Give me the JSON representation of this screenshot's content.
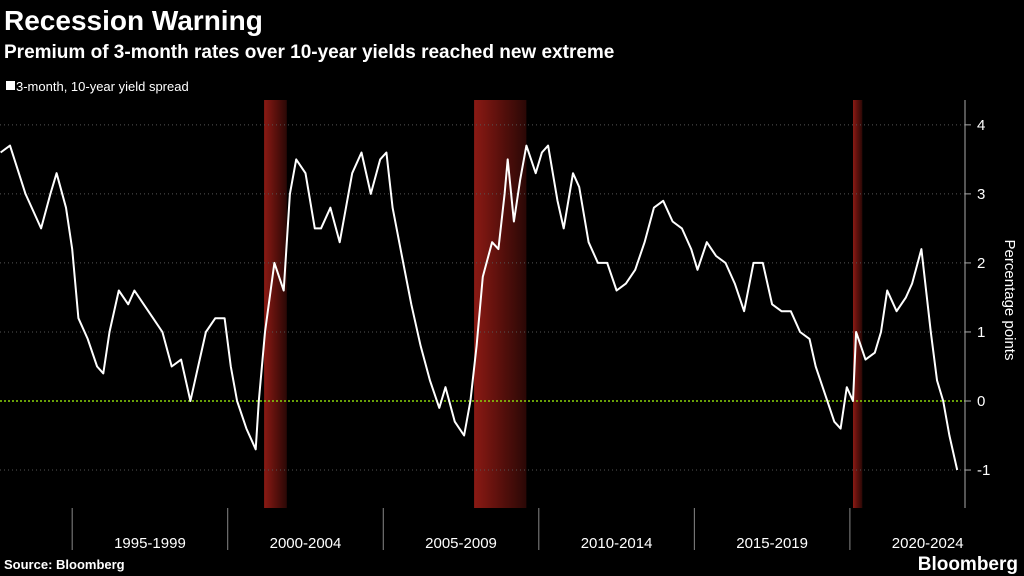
{
  "chart_data": {
    "type": "line",
    "title": "Recession Warning",
    "subtitle": "Premium of 3-month rates over 10-year yields reached new extreme",
    "y_axis_label": "Percentage points",
    "source": "Source: Bloomberg",
    "brand": "Bloomberg",
    "categories": [
      "1995-1999",
      "2000-2004",
      "2005-2009",
      "2010-2014",
      "2015-2019",
      "2020-2024"
    ],
    "xticks": [
      1995,
      2000,
      2005,
      2010,
      2015,
      2020
    ],
    "xlim": [
      1992.68,
      2023.7
    ],
    "ylim": [
      -1.55,
      4.36
    ],
    "yticks": [
      4,
      3,
      2,
      1,
      0,
      -1
    ],
    "grid": true,
    "recessions": [
      [
        2001.17,
        2001.9
      ],
      [
        2007.92,
        2009.6
      ],
      [
        2020.1,
        2020.4
      ]
    ],
    "series": [
      {
        "name": "3-month, 10-year yield spread",
        "color": "#ffffff",
        "x": [
          1992.7,
          1993.0,
          1993.5,
          1994.0,
          1994.3,
          1994.5,
          1994.8,
          1995.0,
          1995.2,
          1995.5,
          1995.8,
          1996.0,
          1996.2,
          1996.5,
          1996.8,
          1997.0,
          1997.3,
          1997.6,
          1997.9,
          1998.2,
          1998.5,
          1998.8,
          1999.0,
          1999.3,
          1999.6,
          1999.9,
          2000.1,
          2000.3,
          2000.6,
          2000.9,
          2001.0,
          2001.2,
          2001.5,
          2001.8,
          2002.0,
          2002.2,
          2002.5,
          2002.8,
          2003.0,
          2003.3,
          2003.6,
          2004.0,
          2004.3,
          2004.6,
          2004.9,
          2005.1,
          2005.3,
          2005.6,
          2005.9,
          2006.2,
          2006.5,
          2006.8,
          2007.0,
          2007.3,
          2007.6,
          2007.8,
          2008.0,
          2008.2,
          2008.5,
          2008.7,
          2008.9,
          2009.0,
          2009.2,
          2009.4,
          2009.6,
          2009.9,
          2010.1,
          2010.3,
          2010.6,
          2010.8,
          2011.1,
          2011.3,
          2011.6,
          2011.9,
          2012.2,
          2012.5,
          2012.8,
          2013.1,
          2013.4,
          2013.7,
          2014.0,
          2014.3,
          2014.6,
          2014.9,
          2015.1,
          2015.4,
          2015.7,
          2016.0,
          2016.3,
          2016.6,
          2016.9,
          2017.2,
          2017.5,
          2017.8,
          2018.1,
          2018.4,
          2018.7,
          2018.9,
          2019.2,
          2019.5,
          2019.7,
          2019.9,
          2020.1,
          2020.2,
          2020.5,
          2020.8,
          2021.0,
          2021.2,
          2021.5,
          2021.8,
          2022.0,
          2022.3,
          2022.6,
          2022.8,
          2023.0,
          2023.2,
          2023.45
        ],
        "values": [
          3.6,
          3.7,
          3.0,
          2.5,
          3.0,
          3.3,
          2.8,
          2.2,
          1.2,
          0.9,
          0.5,
          0.4,
          1.0,
          1.6,
          1.4,
          1.6,
          1.4,
          1.2,
          1.0,
          0.5,
          0.6,
          0.0,
          0.4,
          1.0,
          1.2,
          1.2,
          0.5,
          0.0,
          -0.4,
          -0.7,
          0.0,
          1.0,
          2.0,
          1.6,
          3.0,
          3.5,
          3.3,
          2.5,
          2.5,
          2.8,
          2.3,
          3.3,
          3.6,
          3.0,
          3.5,
          3.6,
          2.8,
          2.1,
          1.4,
          0.8,
          0.3,
          -0.1,
          0.2,
          -0.3,
          -0.5,
          0.0,
          0.8,
          1.8,
          2.3,
          2.2,
          3.0,
          3.5,
          2.6,
          3.2,
          3.7,
          3.3,
          3.6,
          3.7,
          2.9,
          2.5,
          3.3,
          3.1,
          2.3,
          2.0,
          2.0,
          1.6,
          1.7,
          1.9,
          2.3,
          2.8,
          2.9,
          2.6,
          2.5,
          2.2,
          1.9,
          2.3,
          2.1,
          2.0,
          1.7,
          1.3,
          2.0,
          2.0,
          1.4,
          1.3,
          1.3,
          1.0,
          0.9,
          0.5,
          0.1,
          -0.3,
          -0.4,
          0.2,
          0.0,
          1.0,
          0.6,
          0.7,
          1.0,
          1.6,
          1.3,
          1.5,
          1.7,
          2.2,
          1.0,
          0.3,
          0.0,
          -0.5,
          -1.0
        ]
      }
    ]
  }
}
